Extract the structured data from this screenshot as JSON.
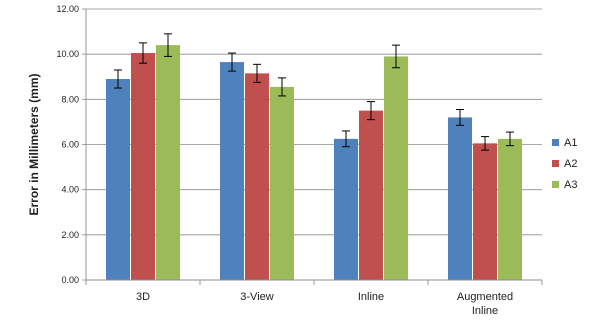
{
  "chart_data": {
    "type": "bar",
    "ylabel": "Error in Millimeters (mm)",
    "ylim": [
      0,
      12
    ],
    "ytick_step": 2,
    "ytick_labels": [
      "0.00",
      "2.00",
      "4.00",
      "6.00",
      "8.00",
      "10.00",
      "12.00"
    ],
    "grid": true,
    "legend_position": "right",
    "categories": [
      "3D",
      "3-View",
      "Inline",
      "Augmented Inline"
    ],
    "category_lines": [
      [
        "3D"
      ],
      [
        "3-View"
      ],
      [
        "Inline"
      ],
      [
        "Augmented",
        "Inline"
      ]
    ],
    "series": [
      {
        "name": "A1",
        "color": "#4F81BD",
        "values": [
          8.9,
          9.65,
          6.25,
          7.2
        ],
        "errors": [
          0.4,
          0.4,
          0.35,
          0.35
        ]
      },
      {
        "name": "A2",
        "color": "#C0504D",
        "values": [
          10.05,
          9.15,
          7.5,
          6.05
        ],
        "errors": [
          0.45,
          0.4,
          0.4,
          0.3
        ]
      },
      {
        "name": "A3",
        "color": "#9BBB59",
        "values": [
          10.4,
          8.55,
          9.9,
          6.25
        ],
        "errors": [
          0.5,
          0.4,
          0.5,
          0.3
        ]
      }
    ]
  }
}
